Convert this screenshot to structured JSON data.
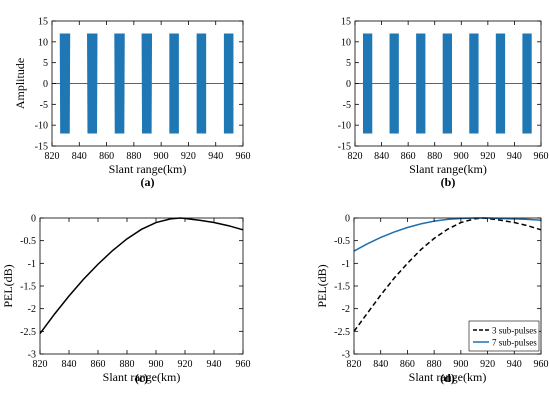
{
  "chart_data": [
    {
      "panel": "(a)",
      "type": "line",
      "xlabel": "Slant range(km)",
      "ylabel": "Amplitude",
      "xlim": [
        820,
        960
      ],
      "ylim": [
        -15,
        15
      ],
      "xticks": [
        820,
        840,
        860,
        880,
        900,
        920,
        940,
        960
      ],
      "yticks": [
        15,
        10,
        5,
        0,
        -5,
        -10,
        -15
      ],
      "grid": false,
      "color": "#1f77b4",
      "baseline": 0,
      "pulse_amplitude": 12,
      "pulses": [
        {
          "start": 826,
          "end": 833,
          "tapered": true
        },
        {
          "start": 846,
          "end": 853,
          "tapered": true
        },
        {
          "start": 866,
          "end": 873,
          "tapered": true
        },
        {
          "start": 886,
          "end": 893,
          "tapered": true
        },
        {
          "start": 906,
          "end": 913,
          "tapered": false
        },
        {
          "start": 926,
          "end": 933,
          "tapered": false
        },
        {
          "start": 946,
          "end": 953,
          "tapered": false
        }
      ]
    },
    {
      "panel": "(b)",
      "type": "line",
      "xlabel": "Slant range(km)",
      "ylabel": "",
      "xlim": [
        820,
        960
      ],
      "ylim": [
        -15,
        15
      ],
      "xticks": [
        820,
        840,
        860,
        880,
        900,
        920,
        940,
        960
      ],
      "yticks": [
        15,
        10,
        5,
        0,
        -5,
        -10,
        -15
      ],
      "grid": false,
      "color": "#1f77b4",
      "baseline": 0,
      "pulse_amplitude": 12,
      "pulses": [
        {
          "start": 826,
          "end": 833,
          "tapered": false
        },
        {
          "start": 846,
          "end": 853,
          "tapered": false
        },
        {
          "start": 866,
          "end": 873,
          "tapered": false
        },
        {
          "start": 886,
          "end": 893,
          "tapered": false
        },
        {
          "start": 906,
          "end": 913,
          "tapered": false
        },
        {
          "start": 926,
          "end": 933,
          "tapered": false
        },
        {
          "start": 946,
          "end": 953,
          "tapered": false
        }
      ]
    },
    {
      "panel": "(c)",
      "type": "line",
      "xlabel": "Slant range(km)",
      "ylabel": "PEL(dB)",
      "xlim": [
        820,
        960
      ],
      "ylim": [
        -3,
        0
      ],
      "xticks": [
        820,
        840,
        860,
        880,
        900,
        920,
        940,
        960
      ],
      "yticks": [
        0,
        -0.5,
        -1,
        -1.5,
        -2,
        -2.5,
        -3
      ],
      "grid": false,
      "series": [
        {
          "color": "#000000",
          "dash": "solid",
          "x": [
            820,
            830,
            840,
            850,
            860,
            870,
            880,
            890,
            900,
            910,
            917,
            920,
            930,
            940,
            950,
            960
          ],
          "y": [
            -2.55,
            -2.12,
            -1.72,
            -1.35,
            -1.02,
            -0.72,
            -0.46,
            -0.25,
            -0.1,
            -0.02,
            0,
            -0.01,
            -0.05,
            -0.1,
            -0.17,
            -0.26
          ]
        }
      ]
    },
    {
      "panel": "(d)",
      "type": "line",
      "xlabel": "Slant range(km)",
      "ylabel": "PEL(dB)",
      "xlim": [
        820,
        960
      ],
      "ylim": [
        -3,
        0
      ],
      "xticks": [
        820,
        840,
        860,
        880,
        900,
        920,
        940,
        960
      ],
      "yticks": [
        0,
        -0.5,
        -1,
        -1.5,
        -2,
        -2.5,
        -3
      ],
      "grid": false,
      "legend_position": "bottom-right",
      "series": [
        {
          "name": "3 sub-pulses",
          "color": "#000000",
          "dash": "dashed",
          "x": [
            820,
            830,
            840,
            850,
            860,
            870,
            880,
            890,
            900,
            910,
            917,
            920,
            930,
            940,
            950,
            960
          ],
          "y": [
            -2.5,
            -2.1,
            -1.7,
            -1.33,
            -1.0,
            -0.7,
            -0.45,
            -0.25,
            -0.1,
            -0.02,
            0,
            -0.01,
            -0.05,
            -0.1,
            -0.17,
            -0.26
          ]
        },
        {
          "name": "7 sub-pulses",
          "color": "#1f6fb0",
          "dash": "solid",
          "x": [
            820,
            830,
            840,
            850,
            860,
            870,
            880,
            890,
            900,
            910,
            917,
            920,
            930,
            940,
            950,
            960
          ],
          "y": [
            -0.73,
            -0.57,
            -0.43,
            -0.31,
            -0.21,
            -0.13,
            -0.07,
            -0.03,
            -0.01,
            0,
            0,
            0,
            -0.01,
            -0.02,
            -0.03,
            -0.05
          ]
        }
      ]
    }
  ]
}
